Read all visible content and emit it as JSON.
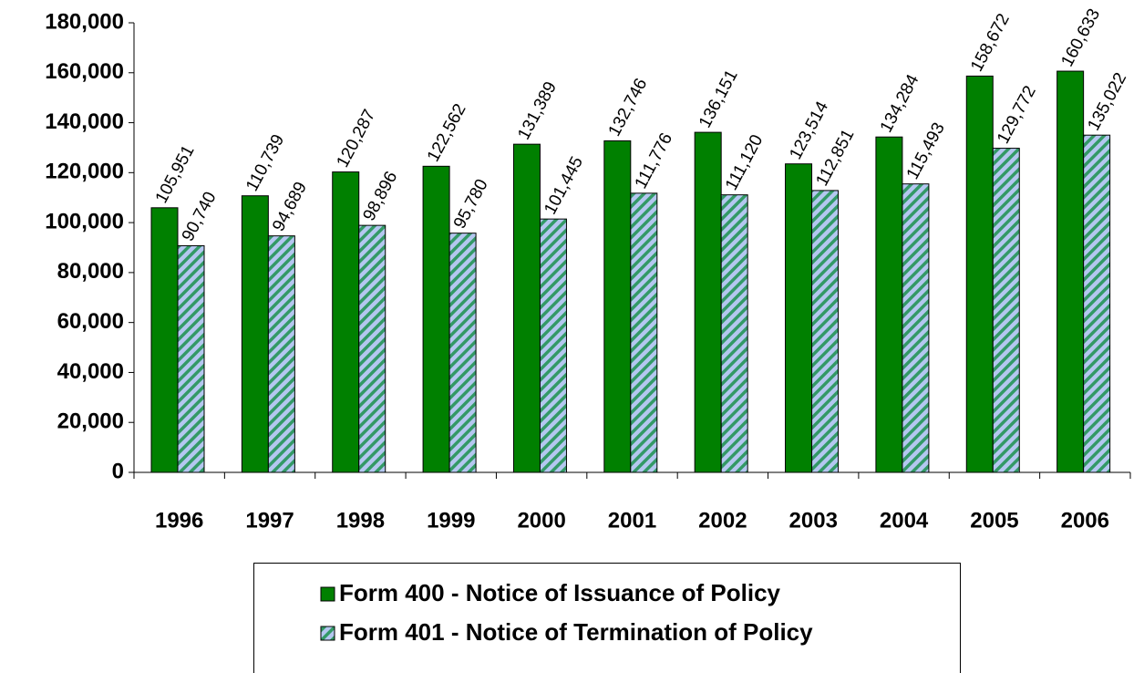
{
  "chart_data": {
    "type": "bar",
    "categories": [
      "1996",
      "1997",
      "1998",
      "1999",
      "2000",
      "2001",
      "2002",
      "2003",
      "2004",
      "2005",
      "2006"
    ],
    "series": [
      {
        "name": "Form 400 - Notice of Issuance of Policy",
        "color": "#008000",
        "values": [
          105951,
          110739,
          120287,
          122562,
          131389,
          132746,
          136151,
          123514,
          134284,
          158672,
          160633
        ],
        "value_labels": [
          "105,951",
          "110,739",
          "120,287",
          "122,562",
          "131,389",
          "132,746",
          "136,151",
          "123,514",
          "134,284",
          "158,672",
          "160,633"
        ]
      },
      {
        "name": "Form 401 - Notice of Termination of Policy",
        "color": "#b4c7f0",
        "hatch_color": "#339966",
        "values": [
          90740,
          94689,
          98896,
          95780,
          101445,
          111776,
          111120,
          112851,
          115493,
          129772,
          135022
        ],
        "value_labels": [
          "90,740",
          "94,689",
          "98,896",
          "95,780",
          "101,445",
          "111,776",
          "111,120",
          "112,851",
          "115,493",
          "129,772",
          "135,022"
        ]
      }
    ],
    "ylim": [
      0,
      180000
    ],
    "yticks": [
      0,
      {
        "value": 20000,
        "label": "20,000"
      },
      {
        "value": 40000,
        "label": "40,000"
      },
      {
        "value": 60000,
        "label": "60,000"
      },
      {
        "value": 80000,
        "label": "80,000"
      },
      {
        "value": 100000,
        "label": "100,000"
      },
      {
        "value": 120000,
        "label": "120,000"
      },
      {
        "value": 140000,
        "label": "140,000"
      },
      {
        "value": 160000,
        "label": "160,000"
      },
      {
        "value": 180000,
        "label": "180,000"
      }
    ],
    "grid": false
  }
}
